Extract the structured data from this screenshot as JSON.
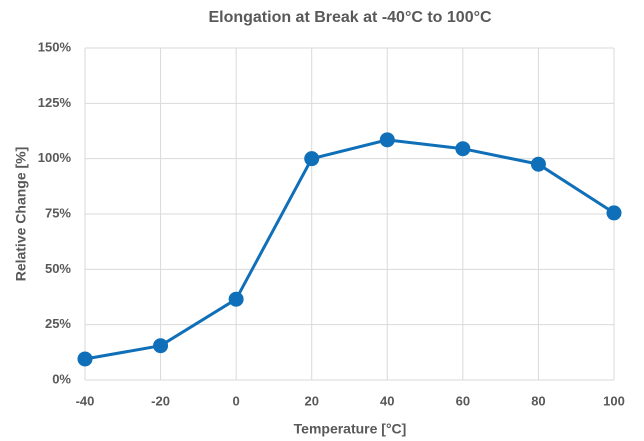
{
  "chart_data": {
    "type": "line",
    "title": "Elongation at Break at -40°C to 100°C",
    "x_label": "Temperature [°C]",
    "y_label": "Relative Change [%]",
    "x": [
      -40,
      -20,
      0,
      20,
      40,
      60,
      80,
      100
    ],
    "series": [
      {
        "name": "Elongation at Break",
        "color": "#0f6fb8",
        "values": [
          9.5,
          15.5,
          36.5,
          100,
          108.5,
          104.5,
          97.5,
          75.5
        ]
      }
    ],
    "xlim": [
      -40,
      100
    ],
    "xticks": [
      -40,
      -20,
      0,
      20,
      40,
      60,
      80,
      100
    ],
    "ylim": [
      0,
      150
    ],
    "yticks": [
      {
        "value": 0,
        "label": "0%"
      },
      {
        "value": 25,
        "label": "25%"
      },
      {
        "value": 50,
        "label": "50%"
      },
      {
        "value": 75,
        "label": "75%"
      },
      {
        "value": 100,
        "label": "100%"
      },
      {
        "value": 125,
        "label": "125%"
      },
      {
        "value": 150,
        "label": "150%"
      }
    ],
    "grid": true
  }
}
